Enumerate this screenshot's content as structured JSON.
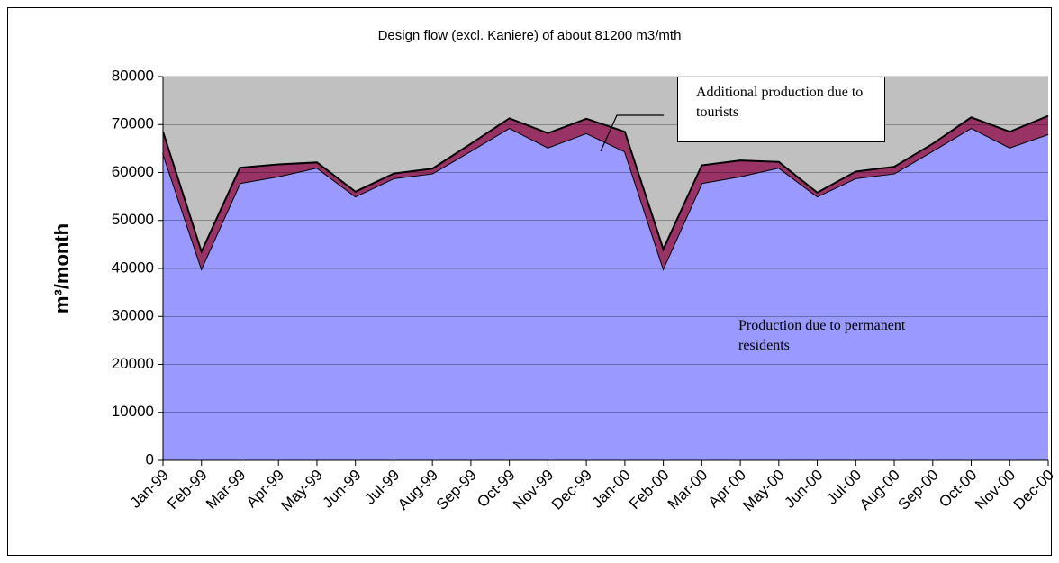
{
  "chart_data": {
    "type": "stacked-area",
    "title": "Design flow (excl. Kaniere)  of about  81200 m3/mth",
    "y_label": "m³/month",
    "categories": [
      "Jan-99",
      "Feb-99",
      "Mar-99",
      "Apr-99",
      "May-99",
      "Jun-99",
      "Jul-99",
      "Aug-99",
      "Sep-99",
      "Oct-99",
      "Nov-99",
      "Dec-99",
      "Jan-00",
      "Feb-00",
      "Mar-00",
      "Apr-00",
      "May-00",
      "Jun-00",
      "Jul-00",
      "Aug-00",
      "Sep-00",
      "Oct-00",
      "Nov-00",
      "Dec-00"
    ],
    "series": [
      {
        "name": "Production due to permanent residents",
        "color": "#9999ff",
        "values": [
          64000,
          40000,
          57800,
          59200,
          61000,
          55000,
          58800,
          59800,
          64500,
          69300,
          65200,
          68200,
          64400,
          40000,
          57800,
          59200,
          61000,
          55000,
          58800,
          59800,
          64500,
          69300,
          65200,
          68000
        ]
      },
      {
        "name": "Additional production due to tourists",
        "color": "#993366",
        "values": [
          4500,
          3500,
          3200,
          2500,
          1100,
          1000,
          1000,
          1000,
          1500,
          2000,
          3000,
          3000,
          4100,
          4000,
          3700,
          3300,
          1200,
          800,
          1400,
          1400,
          1500,
          2200,
          3300,
          3800
        ]
      }
    ],
    "ylim": [
      0,
      80000
    ],
    "yticks": [
      0,
      10000,
      20000,
      30000,
      40000,
      50000,
      60000,
      70000,
      80000
    ],
    "grid": true,
    "plot_background": "#c0c0c0"
  }
}
